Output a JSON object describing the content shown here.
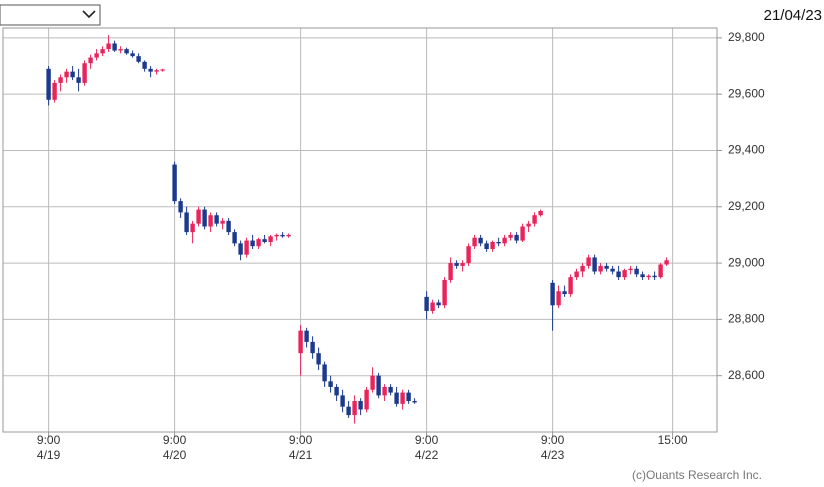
{
  "chart_data": {
    "type": "candlestick",
    "date": "21/04/23",
    "credit": "(c)Ouants Research Inc.",
    "up_color": "#e8245a",
    "down_color": "#1c3a8c",
    "grid": true,
    "x": [
      0,
      1,
      2,
      3,
      4,
      5,
      6,
      7,
      8,
      9,
      10,
      11,
      12,
      13,
      14,
      15,
      16,
      17,
      18,
      19,
      21,
      22,
      23,
      24,
      25,
      26,
      27,
      28,
      29,
      30,
      31,
      32,
      33,
      34,
      35,
      36,
      37,
      38,
      39,
      40,
      42,
      43,
      44,
      45,
      46,
      47,
      48,
      49,
      50,
      51,
      52,
      53,
      54,
      55,
      56,
      57,
      58,
      59,
      60,
      61,
      63,
      64,
      65,
      66,
      67,
      68,
      69,
      70,
      71,
      72,
      73,
      74,
      75,
      76,
      77,
      78,
      79,
      80,
      81,
      82,
      84,
      85,
      86,
      87,
      88,
      89,
      90,
      91,
      92,
      93,
      94,
      95,
      96,
      97,
      98,
      99,
      100,
      101,
      102,
      103
    ],
    "open": [
      29690,
      29580,
      29640,
      29660,
      29680,
      29660,
      29640,
      29710,
      29730,
      29745,
      29760,
      29780,
      29755,
      29760,
      29745,
      29735,
      29715,
      29690,
      29680,
      29685,
      29350,
      29220,
      29180,
      29110,
      29140,
      29190,
      29130,
      29170,
      29140,
      29150,
      29110,
      29070,
      29030,
      29080,
      29060,
      29085,
      29075,
      29095,
      29100,
      29095,
      28680,
      28760,
      28720,
      28680,
      28640,
      28580,
      28560,
      28530,
      28490,
      28460,
      28510,
      28480,
      28550,
      28600,
      28530,
      28560,
      28540,
      28500,
      28540,
      28510,
      28880,
      28830,
      28860,
      28850,
      28940,
      29000,
      28990,
      29000,
      29060,
      29090,
      29070,
      29050,
      29075,
      29070,
      29090,
      29100,
      29080,
      29130,
      29140,
      29170,
      28930,
      28850,
      28900,
      28890,
      28950,
      28970,
      28990,
      29020,
      28970,
      28990,
      28980,
      28970,
      28950,
      28975,
      28980,
      28960,
      28950,
      28955,
      28950,
      28995
    ],
    "high": [
      29700,
      29650,
      29670,
      29690,
      29700,
      29690,
      29720,
      29740,
      29760,
      29770,
      29810,
      29790,
      29770,
      29765,
      29755,
      29745,
      29720,
      29700,
      29690,
      29690,
      29360,
      29230,
      29200,
      29150,
      29200,
      29200,
      29180,
      29180,
      29160,
      29160,
      29120,
      29080,
      29090,
      29100,
      29090,
      29100,
      29100,
      29105,
      29110,
      29105,
      28780,
      28770,
      28740,
      28700,
      28650,
      28600,
      28570,
      28550,
      28510,
      28530,
      28520,
      28560,
      28630,
      28610,
      28570,
      28570,
      28560,
      28550,
      28550,
      28520,
      28900,
      28870,
      28870,
      28950,
      29020,
      29010,
      29010,
      29070,
      29100,
      29100,
      29080,
      29080,
      29090,
      29100,
      29110,
      29110,
      29140,
      29150,
      29180,
      29190,
      28940,
      28920,
      28920,
      28960,
      28980,
      29000,
      29030,
      29030,
      29000,
      29000,
      28990,
      28990,
      28980,
      28990,
      28990,
      28970,
      28960,
      28970,
      29000,
      29020
    ],
    "low": [
      29560,
      29570,
      29610,
      29640,
      29650,
      29610,
      29630,
      29690,
      29720,
      29735,
      29750,
      29750,
      29745,
      29740,
      29730,
      29710,
      29680,
      29660,
      29670,
      29680,
      29210,
      29160,
      29100,
      29070,
      29130,
      29120,
      29110,
      29130,
      29120,
      29100,
      29060,
      29010,
      29020,
      29050,
      29050,
      29070,
      29060,
      29080,
      29090,
      29090,
      28600,
      28700,
      28660,
      28620,
      28560,
      28540,
      28510,
      28470,
      28450,
      28430,
      28460,
      28470,
      28540,
      28520,
      28510,
      28530,
      28490,
      28480,
      28500,
      28500,
      28800,
      28820,
      28840,
      28840,
      28930,
      28980,
      28970,
      28990,
      29050,
      29060,
      29040,
      29040,
      29060,
      29060,
      29080,
      29070,
      29075,
      29110,
      29130,
      29165,
      28760,
      28840,
      28880,
      28880,
      28940,
      28950,
      28980,
      28960,
      28960,
      28970,
      28960,
      28940,
      28940,
      28960,
      28950,
      28940,
      28940,
      28940,
      28945,
      28990
    ],
    "close": [
      29580,
      29640,
      29660,
      29680,
      29660,
      29640,
      29710,
      29730,
      29745,
      29760,
      29780,
      29755,
      29760,
      29745,
      29735,
      29715,
      29690,
      29680,
      29685,
      29688,
      29220,
      29180,
      29110,
      29140,
      29190,
      29130,
      29170,
      29140,
      29150,
      29110,
      29070,
      29030,
      29080,
      29060,
      29085,
      29075,
      29095,
      29100,
      29095,
      29100,
      28760,
      28720,
      28680,
      28640,
      28580,
      28560,
      28530,
      28490,
      28460,
      28510,
      28480,
      28550,
      28600,
      28530,
      28560,
      28540,
      28500,
      28540,
      28510,
      28505,
      28830,
      28860,
      28850,
      28940,
      29000,
      28990,
      29000,
      29060,
      29090,
      29070,
      29050,
      29075,
      29070,
      29090,
      29100,
      29080,
      29130,
      29140,
      29170,
      29185,
      28850,
      28900,
      28890,
      28950,
      28970,
      28990,
      29020,
      28970,
      28990,
      28980,
      28970,
      28950,
      28975,
      28980,
      28960,
      28950,
      28955,
      28950,
      28995,
      29010
    ],
    "xlim": [
      -7.6,
      111.4
    ],
    "xticks": [
      {
        "value": 0,
        "label": "9:00",
        "sublabel": "4/19"
      },
      {
        "value": 21,
        "label": "9:00",
        "sublabel": "4/20"
      },
      {
        "value": 42,
        "label": "9:00",
        "sublabel": "4/21"
      },
      {
        "value": 63,
        "label": "9:00",
        "sublabel": "4/22"
      },
      {
        "value": 84,
        "label": "9:00",
        "sublabel": "4/23"
      },
      {
        "value": 104,
        "label": "15:00"
      }
    ],
    "ylim": [
      28400,
      29835
    ],
    "yticks": [
      {
        "value": 28600,
        "label": "28,600"
      },
      {
        "value": 28800,
        "label": "28,800"
      },
      {
        "value": 29000,
        "label": "29,000"
      },
      {
        "value": 29200,
        "label": "29,200"
      },
      {
        "value": 29400,
        "label": "29,400"
      },
      {
        "value": 29600,
        "label": "29,600"
      },
      {
        "value": 29800,
        "label": "29,800"
      }
    ]
  }
}
